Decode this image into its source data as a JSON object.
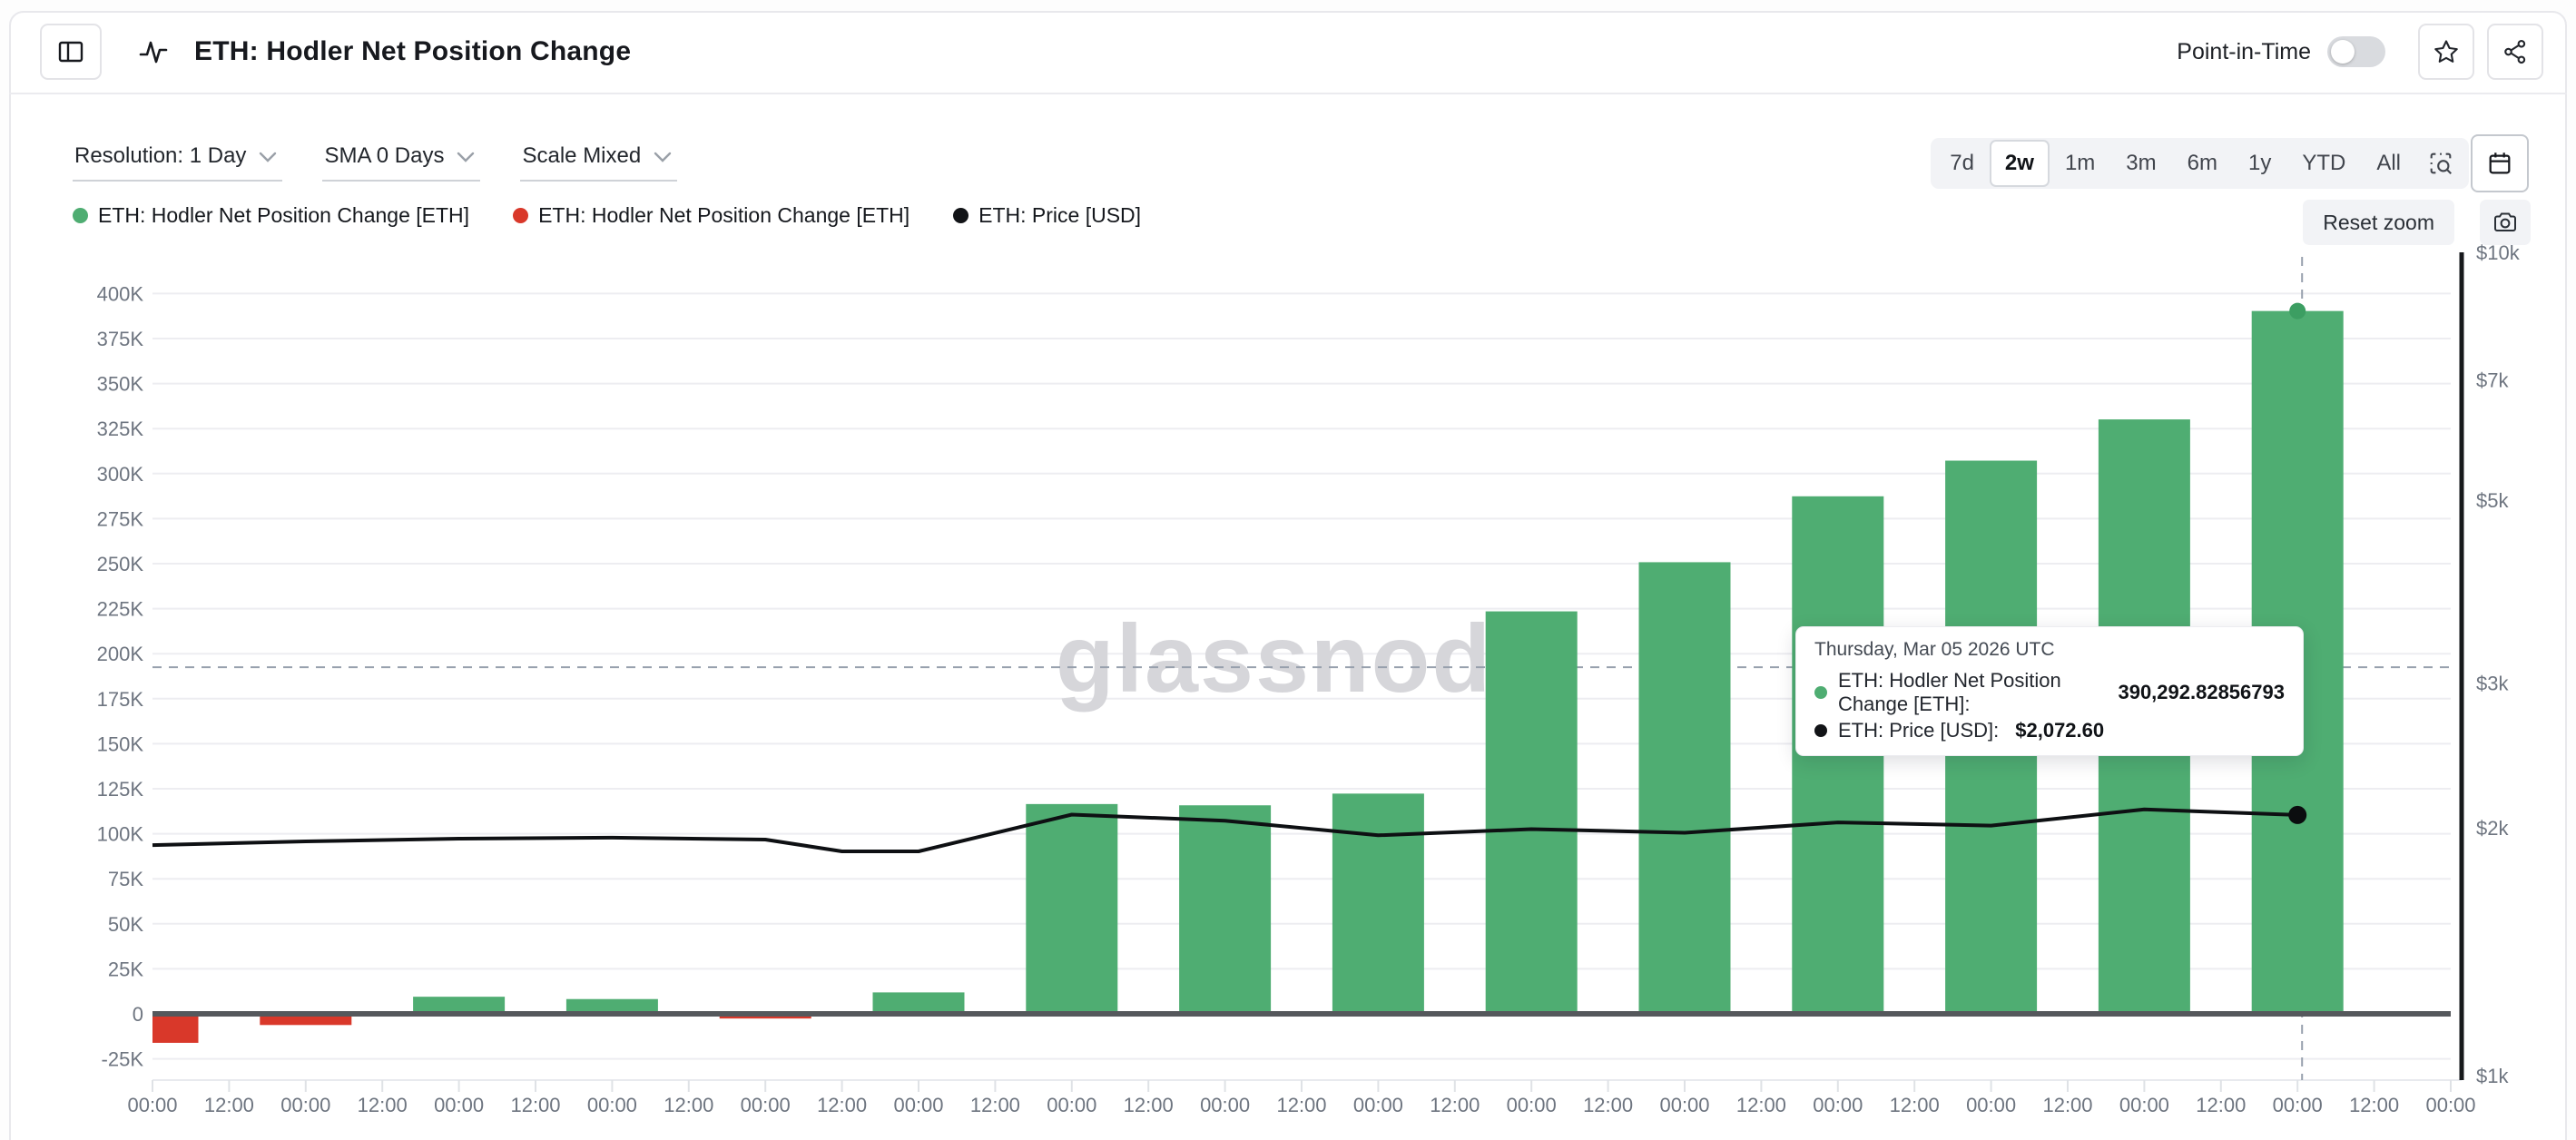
{
  "header": {
    "title": "ETH: Hodler Net Position Change",
    "point_in_time_label": "Point-in-Time",
    "point_in_time_on": false
  },
  "toolbar": {
    "dropdowns": [
      {
        "label": "Resolution: 1 Day"
      },
      {
        "label": "SMA 0 Days"
      },
      {
        "label": "Scale Mixed"
      }
    ],
    "ranges": [
      "7d",
      "2w",
      "1m",
      "3m",
      "6m",
      "1y",
      "YTD",
      "All"
    ],
    "active_range": "2w",
    "reset_zoom_label": "Reset zoom"
  },
  "legend": [
    {
      "label": "ETH: Hodler Net Position Change [ETH]",
      "color": "#4fad72"
    },
    {
      "label": "ETH: Hodler Net Position Change [ETH]",
      "color": "#d9382a"
    },
    {
      "label": "ETH: Price [USD]",
      "color": "#121417"
    }
  ],
  "watermark": "glassnode",
  "tooltip": {
    "title": "Thursday, Mar 05 2026 UTC",
    "rows": [
      {
        "color": "#4fad72",
        "label": "ETH: Hodler Net Position Change [ETH]:",
        "value": "390,292.82856793"
      },
      {
        "color": "#121417",
        "label": "ETH: Price [USD]:",
        "value": "$2,072.60"
      }
    ]
  },
  "chart_data": {
    "type": "mixed-bar-line",
    "bar_series": {
      "name": "ETH: Hodler Net Position Change [ETH]",
      "unit": "ETH",
      "positive_color": "#4fad72",
      "negative_color": "#d9382a",
      "values": [
        -16100,
        -6200,
        9500,
        8200,
        -2600,
        11900,
        116500,
        115800,
        122300,
        223500,
        250800,
        287400,
        307200,
        330100,
        390292.82856793
      ]
    },
    "line_series": {
      "name": "ETH: Price [USD]",
      "color": "#0e1013",
      "scale": "log",
      "points": [
        {
          "t": 0,
          "usd": 1905
        },
        {
          "t": 1,
          "usd": 1925
        },
        {
          "t": 2,
          "usd": 1940
        },
        {
          "t": 3,
          "usd": 1945
        },
        {
          "t": 4,
          "usd": 1935
        },
        {
          "t": 4.5,
          "usd": 1872
        },
        {
          "t": 5,
          "usd": 1872
        },
        {
          "t": 6,
          "usd": 2075
        },
        {
          "t": 7,
          "usd": 2040
        },
        {
          "t": 8,
          "usd": 1958
        },
        {
          "t": 9,
          "usd": 1992
        },
        {
          "t": 10,
          "usd": 1972
        },
        {
          "t": 11,
          "usd": 2030
        },
        {
          "t": 12,
          "usd": 2012
        },
        {
          "t": 13,
          "usd": 2105
        },
        {
          "t": 14,
          "usd": 2072.6
        }
      ]
    },
    "left_axis": {
      "min": -25000,
      "max": 400000,
      "step": 25000,
      "tick_labels": [
        "400K",
        "375K",
        "350K",
        "325K",
        "300K",
        "275K",
        "250K",
        "225K",
        "200K",
        "175K",
        "150K",
        "125K",
        "100K",
        "75K",
        "50K",
        "25K",
        "0",
        "-25K"
      ]
    },
    "right_axis": {
      "scale": "log",
      "min": 1000,
      "max": 10000,
      "ticks": [
        {
          "label": "$10k",
          "value": 10000
        },
        {
          "label": "$7k",
          "value": 7000
        },
        {
          "label": "$5k",
          "value": 5000
        },
        {
          "label": "$3k",
          "value": 3000
        },
        {
          "label": "$2k",
          "value": 2000
        },
        {
          "label": "$1k",
          "value": 1000
        }
      ]
    },
    "x_axis": {
      "tick_labels": [
        "00:00",
        "12:00",
        "00:00",
        "12:00",
        "00:00",
        "12:00",
        "00:00",
        "12:00",
        "00:00",
        "12:00",
        "00:00",
        "12:00",
        "00:00",
        "12:00",
        "00:00",
        "12:00",
        "00:00",
        "12:00",
        "00:00",
        "12:00",
        "00:00",
        "12:00",
        "00:00",
        "12:00",
        "00:00",
        "12:00",
        "00:00",
        "12:00",
        "00:00",
        "12:00",
        "00:00"
      ]
    },
    "hover": {
      "day_index": 14,
      "bar_value": 390292.82856793,
      "price": 2072.6,
      "crosshair_y_left_value": 192500
    },
    "legend_position": "top-left",
    "grid": "horizontal"
  }
}
